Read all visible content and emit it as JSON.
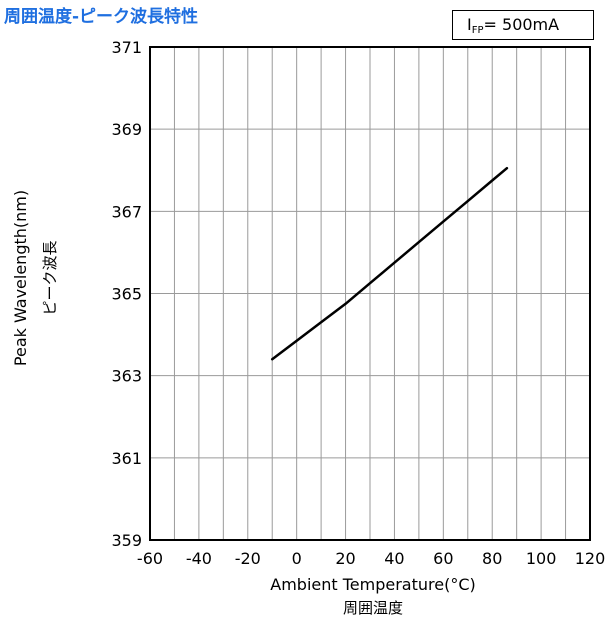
{
  "title": "周囲温度-ピーク波長特性",
  "condition": {
    "symbol": "I",
    "subscript": "FP",
    "value": "= 500mA"
  },
  "chart_data": {
    "type": "line",
    "xlabel": "Ambient Temperature(°C)",
    "xlabel_jp": "周囲温度",
    "ylabel": "Peak Wavelength(nm)",
    "ylabel_jp": "ピーク波長",
    "xlim": [
      -60,
      120
    ],
    "ylim": [
      359,
      371
    ],
    "x_ticks": [
      -60,
      -40,
      -20,
      0,
      20,
      40,
      60,
      80,
      100,
      120
    ],
    "y_ticks": [
      359,
      361,
      363,
      365,
      367,
      369,
      371
    ],
    "grid": true,
    "series": [
      {
        "x": [
          -10,
          0,
          10,
          20,
          30,
          40,
          50,
          60,
          70,
          80,
          86
        ],
        "y": [
          363.4,
          363.85,
          364.3,
          364.75,
          365.25,
          365.75,
          366.25,
          366.75,
          367.25,
          367.75,
          368.05
        ],
        "color": "#000000"
      }
    ]
  }
}
